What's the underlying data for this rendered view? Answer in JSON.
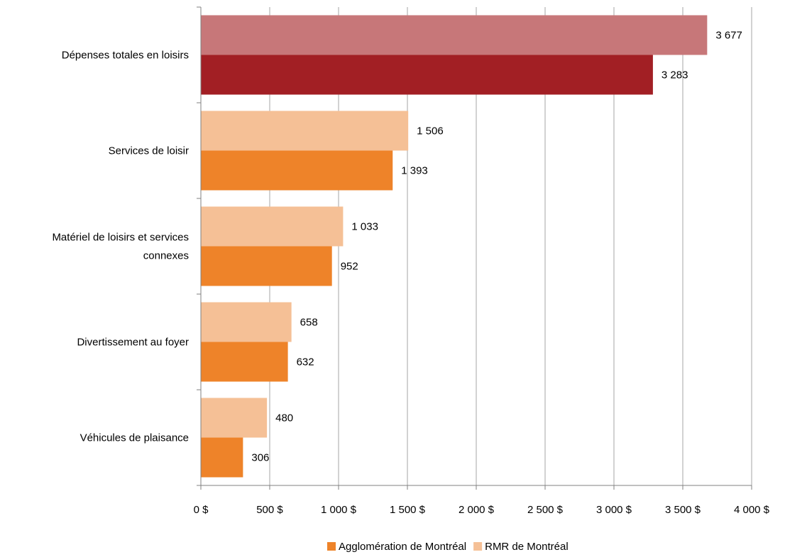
{
  "chart_data": {
    "type": "bar",
    "orientation": "horizontal",
    "categories": [
      [
        "Dépenses totales en loisirs"
      ],
      [
        "Services de loisir"
      ],
      [
        "Matériel de loisirs et services",
        "connexes"
      ],
      [
        "Divertissement au foyer"
      ],
      [
        "Véhicules de plaisance"
      ]
    ],
    "series": [
      {
        "name": "RMR de Montréal",
        "values": [
          3677,
          1506,
          1033,
          658,
          480
        ],
        "value_labels": [
          "3 677",
          "1 506",
          "1 033",
          "658",
          "480"
        ],
        "colors": [
          "#C77779",
          "#F5C096",
          "#F5C096",
          "#F5C096",
          "#F5C096"
        ]
      },
      {
        "name": "Agglomération de Montréal",
        "values": [
          3283,
          1393,
          952,
          632,
          306
        ],
        "value_labels": [
          "3 283",
          "1 393",
          "952",
          "632",
          "306"
        ],
        "colors": [
          "#A21F24",
          "#EE8329",
          "#EE8329",
          "#EE8329",
          "#EE8329"
        ]
      }
    ],
    "xlim": [
      0,
      4000
    ],
    "xticks": [
      0,
      500,
      1000,
      1500,
      2000,
      2500,
      3000,
      3500,
      4000
    ],
    "xtick_labels": [
      "0 $",
      "500 $",
      "1 000 $",
      "1 500 $",
      "2 000 $",
      "2 500 $",
      "3 000 $",
      "3 500 $",
      "4 000 $"
    ],
    "grid": "vertical",
    "legend": {
      "position": "bottom",
      "entries": [
        {
          "label": "Agglomération de Montréal",
          "color": "#EE8329"
        },
        {
          "label": "RMR de Montréal",
          "color": "#F5C096"
        }
      ]
    }
  }
}
